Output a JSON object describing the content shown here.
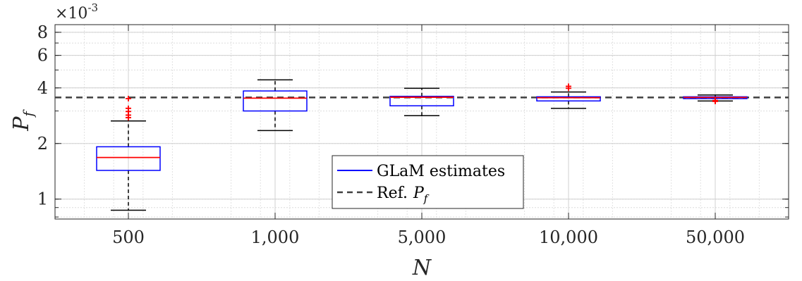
{
  "chart_data": {
    "type": "box",
    "categories": [
      "500",
      "1,000",
      "5,000",
      "10,000",
      "50,000"
    ],
    "xlabel": "N",
    "ylabel": "P",
    "ylabel_sub": "f",
    "yscale": "log",
    "ylim": [
      0.00078,
      0.0088
    ],
    "y_exponent_label": "×10",
    "y_exponent_power": "-3",
    "y_tick_values": [
      0.001,
      0.002,
      0.004,
      0.006,
      0.008
    ],
    "y_tick_labels": [
      "1",
      "2",
      "4",
      "6",
      "8"
    ],
    "grid": true,
    "minor_grid": true,
    "reference_line": {
      "value": 0.00355,
      "label": "Ref.",
      "label_symbol": "P",
      "label_sub": "f",
      "style": "dashed"
    },
    "legend": {
      "placement": "lower-center",
      "entries": [
        {
          "label": "GLaM estimates",
          "marker": "solid-blue"
        },
        {
          "label": "Ref.",
          "symbol": "P",
          "sub": "f",
          "marker": "dashed-gray"
        }
      ]
    },
    "boxes": [
      {
        "category": "500",
        "whisker_low": 0.00087,
        "q1": 0.00143,
        "median": 0.00168,
        "q3": 0.00192,
        "whisker_high": 0.00265,
        "outliers": [
          0.00276,
          0.00285,
          0.00298,
          0.0031,
          0.0035
        ]
      },
      {
        "category": "1,000",
        "whisker_low": 0.00235,
        "q1": 0.003,
        "median": 0.00352,
        "q3": 0.00385,
        "whisker_high": 0.00442,
        "outliers": []
      },
      {
        "category": "5,000",
        "whisker_low": 0.00283,
        "q1": 0.0032,
        "median": 0.00356,
        "q3": 0.0036,
        "whisker_high": 0.00398,
        "outliers": []
      },
      {
        "category": "10,000",
        "whisker_low": 0.0031,
        "q1": 0.0034,
        "median": 0.00354,
        "q3": 0.00358,
        "whisker_high": 0.0038,
        "outliers": [
          0.00398,
          0.00408
        ]
      },
      {
        "category": "50,000",
        "whisker_low": 0.0034,
        "q1": 0.0035,
        "median": 0.00355,
        "q3": 0.00358,
        "whisker_high": 0.00366,
        "outliers": [
          0.00342,
          0.00338
        ]
      }
    ],
    "colors": {
      "box": "#0000ff",
      "median": "#ff0000",
      "whisker": "#000000",
      "outlier": "#ff0000",
      "reference": "#404040",
      "grid": "#d0d0d0"
    }
  }
}
